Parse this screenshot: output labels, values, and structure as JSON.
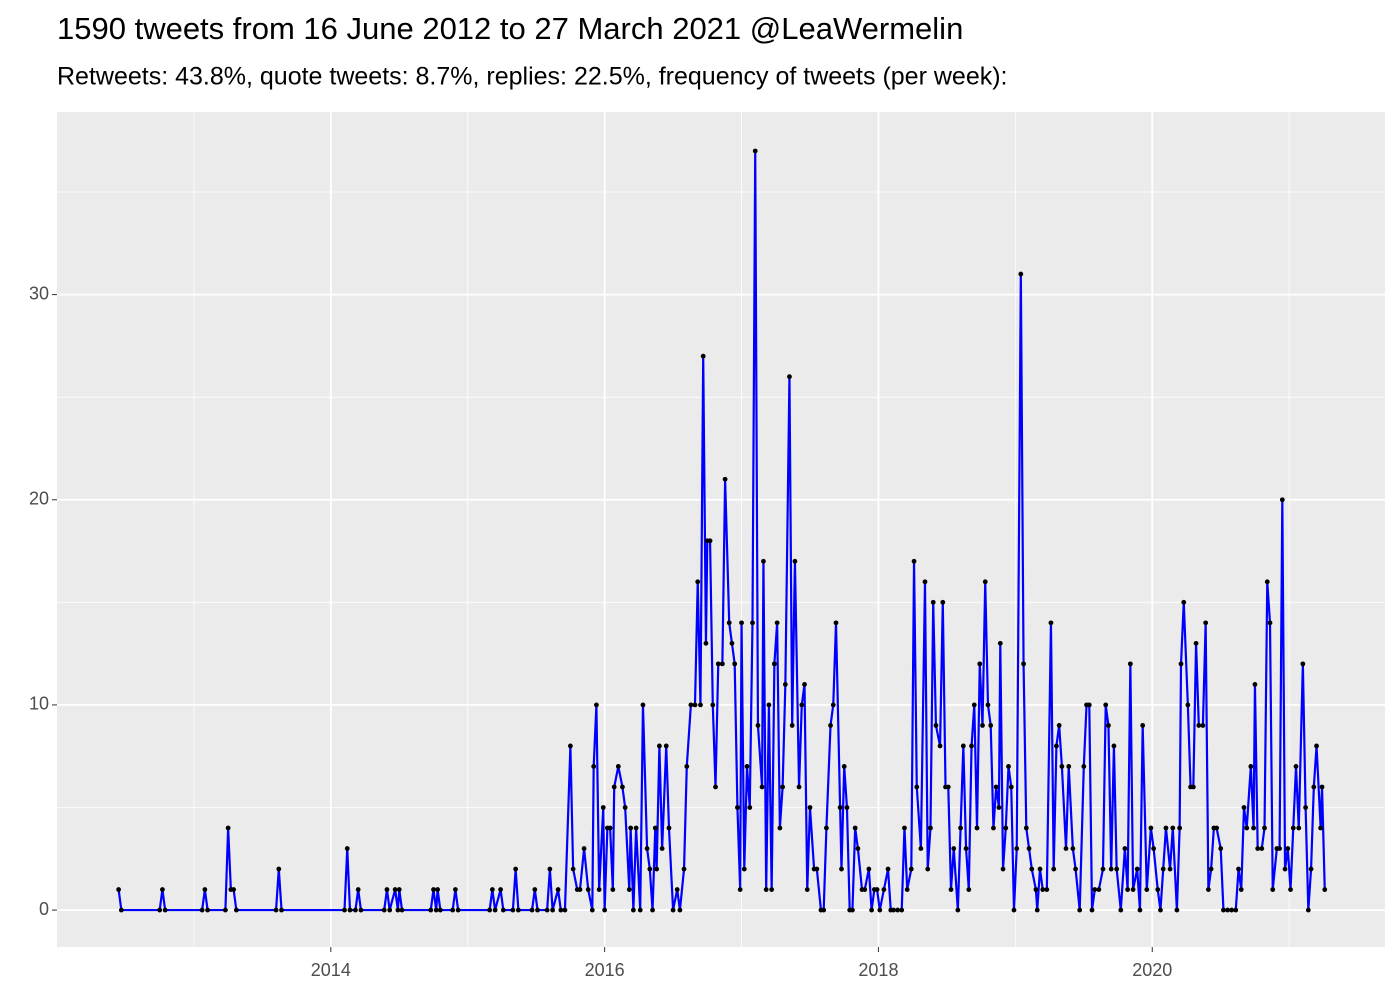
{
  "chart_data": {
    "type": "line",
    "title": "1590 tweets from 16 June 2012 to 27 March 2021 @LeaWermelin",
    "subtitle": "Retweets: 43.8%, quote tweets: 8.7%, replies: 22.5%, frequency of tweets (per week):",
    "color": "#0000ff",
    "point_color": "#000000",
    "grid": true,
    "xlim": [
      2012.0,
      2021.7
    ],
    "xticks": [
      2014,
      2016,
      2018,
      2020
    ],
    "ylim": [
      -1.8,
      38.9
    ],
    "yticks": [
      0,
      10,
      20,
      30
    ],
    "x": [
      2012.45,
      2012.47,
      2012.75,
      2012.77,
      2012.79,
      2013.06,
      2013.08,
      2013.1,
      2013.23,
      2013.25,
      2013.27,
      2013.29,
      2013.31,
      2013.6,
      2013.62,
      2013.64,
      2014.1,
      2014.12,
      2014.14,
      2014.18,
      2014.2,
      2014.22,
      2014.39,
      2014.41,
      2014.43,
      2014.47,
      2014.49,
      2014.5,
      2014.52,
      2014.73,
      2014.75,
      2014.77,
      2014.78,
      2014.8,
      2014.89,
      2014.91,
      2014.93,
      2015.16,
      2015.18,
      2015.2,
      2015.24,
      2015.26,
      2015.33,
      2015.35,
      2015.37,
      2015.47,
      2015.49,
      2015.51,
      2015.58,
      2015.6,
      2015.62,
      2015.66,
      2015.68,
      2015.71,
      2015.75,
      2015.77,
      2015.8,
      2015.82,
      2015.85,
      2015.88,
      2015.91,
      2015.92,
      2015.94,
      2015.96,
      2015.99,
      2016.0,
      2016.02,
      2016.04,
      2016.06,
      2016.07,
      2016.1,
      2016.13,
      2016.15,
      2016.18,
      2016.19,
      2016.21,
      2016.23,
      2016.26,
      2016.28,
      2016.31,
      2016.33,
      2016.35,
      2016.37,
      2016.38,
      2016.4,
      2016.42,
      2016.45,
      2016.47,
      2016.5,
      2016.53,
      2016.55,
      2016.58,
      2016.6,
      2016.63,
      2016.66,
      2016.68,
      2016.7,
      2016.72,
      2016.74,
      2016.75,
      2016.77,
      2016.79,
      2016.81,
      2016.83,
      2016.86,
      2016.88,
      2016.91,
      2016.93,
      2016.95,
      2016.97,
      2016.99,
      2017.0,
      2017.02,
      2017.04,
      2017.06,
      2017.08,
      2017.1,
      2017.12,
      2017.15,
      2017.16,
      2017.18,
      2017.2,
      2017.22,
      2017.24,
      2017.26,
      2017.28,
      2017.3,
      2017.32,
      2017.35,
      2017.37,
      2017.39,
      2017.42,
      2017.44,
      2017.46,
      2017.48,
      2017.5,
      2017.53,
      2017.55,
      2017.58,
      2017.6,
      2017.62,
      2017.65,
      2017.67,
      2017.69,
      2017.72,
      2017.73,
      2017.75,
      2017.77,
      2017.79,
      2017.81,
      2017.83,
      2017.85,
      2017.88,
      2017.9,
      2017.93,
      2017.95,
      2017.97,
      2017.99,
      2018.01,
      2018.04,
      2018.07,
      2018.09,
      2018.11,
      2018.14,
      2018.17,
      2018.19,
      2018.21,
      2018.24,
      2018.26,
      2018.28,
      2018.31,
      2018.34,
      2018.36,
      2018.38,
      2018.4,
      2018.42,
      2018.45,
      2018.47,
      2018.49,
      2018.51,
      2018.53,
      2018.55,
      2018.58,
      2018.6,
      2018.62,
      2018.64,
      2018.66,
      2018.68,
      2018.7,
      2018.72,
      2018.74,
      2018.76,
      2018.78,
      2018.8,
      2018.82,
      2018.84,
      2018.86,
      2018.88,
      2018.89,
      2018.91,
      2018.93,
      2018.95,
      2018.97,
      2018.99,
      2019.01,
      2019.04,
      2019.06,
      2019.08,
      2019.1,
      2019.12,
      2019.15,
      2019.16,
      2019.18,
      2019.2,
      2019.23,
      2019.26,
      2019.28,
      2019.3,
      2019.32,
      2019.34,
      2019.37,
      2019.39,
      2019.42,
      2019.44,
      2019.47,
      2019.5,
      2019.52,
      2019.54,
      2019.56,
      2019.58,
      2019.61,
      2019.64,
      2019.66,
      2019.68,
      2019.7,
      2019.72,
      2019.74,
      2019.77,
      2019.8,
      2019.82,
      2019.84,
      2019.86,
      2019.89,
      2019.91,
      2019.93,
      2019.96,
      2019.99,
      2020.01,
      2020.04,
      2020.06,
      2020.08,
      2020.1,
      2020.13,
      2020.15,
      2020.18,
      2020.2,
      2020.21,
      2020.23,
      2020.26,
      2020.28,
      2020.3,
      2020.32,
      2020.34,
      2020.37,
      2020.39,
      2020.41,
      2020.43,
      2020.45,
      2020.47,
      2020.5,
      2020.52,
      2020.55,
      2020.58,
      2020.61,
      2020.63,
      2020.65,
      2020.67,
      2020.69,
      2020.72,
      2020.74,
      2020.75,
      2020.77,
      2020.8,
      2020.82,
      2020.84,
      2020.86,
      2020.88,
      2020.91,
      2020.93,
      2020.95,
      2020.97,
      2020.99,
      2021.01,
      2021.03,
      2021.05,
      2021.07,
      2021.1,
      2021.12,
      2021.14,
      2021.16,
      2021.18,
      2021.2,
      2021.23,
      2021.24,
      2021.26
    ],
    "values": [
      1,
      0,
      0,
      1,
      0,
      0,
      1,
      0,
      0,
      4,
      1,
      1,
      0,
      0,
      2,
      0,
      0,
      3,
      0,
      0,
      1,
      0,
      0,
      1,
      0,
      1,
      0,
      1,
      0,
      0,
      1,
      0,
      1,
      0,
      0,
      1,
      0,
      0,
      1,
      0,
      1,
      0,
      0,
      2,
      0,
      0,
      1,
      0,
      0,
      2,
      0,
      1,
      0,
      0,
      8,
      2,
      1,
      1,
      3,
      1,
      0,
      7,
      10,
      1,
      5,
      0,
      4,
      4,
      1,
      6,
      7,
      6,
      5,
      1,
      4,
      0,
      4,
      0,
      10,
      3,
      2,
      0,
      4,
      2,
      8,
      3,
      8,
      4,
      0,
      1,
      0,
      2,
      7,
      10,
      10,
      16,
      10,
      27,
      13,
      18,
      18,
      10,
      6,
      12,
      12,
      21,
      14,
      13,
      12,
      5,
      1,
      14,
      2,
      7,
      5,
      14,
      37,
      9,
      6,
      17,
      1,
      10,
      1,
      12,
      14,
      4,
      6,
      11,
      26,
      9,
      17,
      6,
      10,
      11,
      1,
      5,
      2,
      2,
      0,
      0,
      4,
      9,
      10,
      14,
      5,
      2,
      7,
      5,
      0,
      0,
      4,
      3,
      1,
      1,
      2,
      0,
      1,
      1,
      0,
      1,
      2,
      0,
      0,
      0,
      0,
      4,
      1,
      2,
      17,
      6,
      3,
      16,
      2,
      4,
      15,
      9,
      8,
      15,
      6,
      6,
      1,
      3,
      0,
      4,
      8,
      3,
      1,
      8,
      10,
      4,
      12,
      9,
      16,
      10,
      9,
      4,
      6,
      5,
      13,
      2,
      4,
      7,
      6,
      0,
      3,
      31,
      12,
      4,
      3,
      2,
      1,
      0,
      2,
      1,
      1,
      14,
      2,
      8,
      9,
      7,
      3,
      7,
      3,
      2,
      0,
      7,
      10,
      10,
      0,
      1,
      1,
      2,
      10,
      9,
      2,
      8,
      2,
      0,
      3,
      1,
      12,
      1,
      2,
      0,
      9,
      1,
      4,
      3,
      1,
      0,
      2,
      4,
      2,
      4,
      0,
      4,
      12,
      15,
      10,
      6,
      6,
      13,
      9,
      9,
      14,
      1,
      2,
      4,
      4,
      3,
      0,
      0,
      0,
      0,
      2,
      1,
      5,
      4,
      7,
      4,
      11,
      3,
      3,
      4,
      16,
      14,
      1,
      3,
      3,
      20,
      2,
      3,
      1,
      4,
      7,
      4,
      12,
      5,
      0,
      2,
      6,
      8,
      4,
      6,
      1
    ]
  }
}
